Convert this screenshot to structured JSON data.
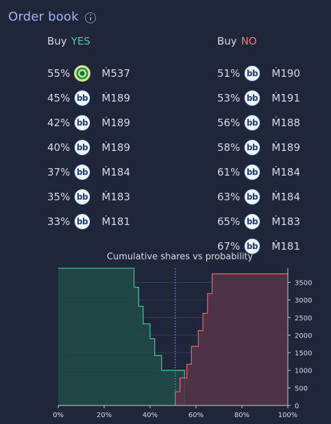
{
  "header": {
    "title": "Order book",
    "info_icon": "info-circle-icon"
  },
  "yes": {
    "buy_label": "Buy",
    "side_label": "YES",
    "rows": [
      {
        "pct": "55%",
        "amount": "Ṁ537",
        "avatar": "special"
      },
      {
        "pct": "45%",
        "amount": "Ṁ189",
        "avatar": "bb"
      },
      {
        "pct": "42%",
        "amount": "Ṁ189",
        "avatar": "bb"
      },
      {
        "pct": "40%",
        "amount": "Ṁ189",
        "avatar": "bb"
      },
      {
        "pct": "37%",
        "amount": "Ṁ184",
        "avatar": "bb"
      },
      {
        "pct": "35%",
        "amount": "Ṁ183",
        "avatar": "bb"
      },
      {
        "pct": "33%",
        "amount": "Ṁ181",
        "avatar": "bb"
      }
    ]
  },
  "no": {
    "buy_label": "Buy",
    "side_label": "NO",
    "rows": [
      {
        "pct": "51%",
        "amount": "Ṁ190",
        "avatar": "bb"
      },
      {
        "pct": "53%",
        "amount": "Ṁ191",
        "avatar": "bb"
      },
      {
        "pct": "56%",
        "amount": "Ṁ188",
        "avatar": "bb"
      },
      {
        "pct": "58%",
        "amount": "Ṁ189",
        "avatar": "bb"
      },
      {
        "pct": "61%",
        "amount": "Ṁ184",
        "avatar": "bb"
      },
      {
        "pct": "63%",
        "amount": "Ṁ184",
        "avatar": "bb"
      },
      {
        "pct": "65%",
        "amount": "Ṁ183",
        "avatar": "bb"
      },
      {
        "pct": "67%",
        "amount": "Ṁ181",
        "avatar": "bb"
      }
    ]
  },
  "avatar_text": "bb",
  "chart_data": {
    "type": "area",
    "title": "Cumulative shares vs probability",
    "xlim": [
      0,
      1
    ],
    "ylim": [
      0,
      3900
    ],
    "x_ticks": [
      0,
      0.2,
      0.4,
      0.6,
      0.8,
      1.0
    ],
    "x_tick_labels": [
      "0%",
      "20%",
      "40%",
      "60%",
      "80%",
      "100%"
    ],
    "y_ticks": [
      0,
      500,
      1000,
      1500,
      2000,
      2500,
      3000,
      3500
    ],
    "y_tick_labels": [
      "0",
      "500",
      "1000",
      "1500",
      "2000",
      "2500",
      "3000",
      "3500"
    ],
    "current_probability": 0.51,
    "series": [
      {
        "color": "#3fbf9b",
        "fill": "#1f4a46",
        "x": [
          0,
          0.33,
          0.33,
          0.35,
          0.35,
          0.37,
          0.37,
          0.4,
          0.4,
          0.42,
          0.42,
          0.45,
          0.45,
          0.55,
          0.55
        ],
        "y": [
          3900,
          3900,
          3360,
          3360,
          2820,
          2820,
          2320,
          2320,
          1900,
          1900,
          1420,
          1420,
          1000,
          1000,
          0
        ]
      },
      {
        "color": "#e0626c",
        "fill": "#523346",
        "x": [
          0.51,
          0.51,
          0.53,
          0.53,
          0.56,
          0.56,
          0.58,
          0.58,
          0.61,
          0.61,
          0.63,
          0.63,
          0.65,
          0.65,
          0.67,
          0.67,
          1.0
        ],
        "y": [
          0,
          390,
          390,
          780,
          780,
          1170,
          1170,
          1680,
          1680,
          2130,
          2130,
          2620,
          2620,
          3180,
          3180,
          3740,
          3740
        ]
      }
    ]
  }
}
